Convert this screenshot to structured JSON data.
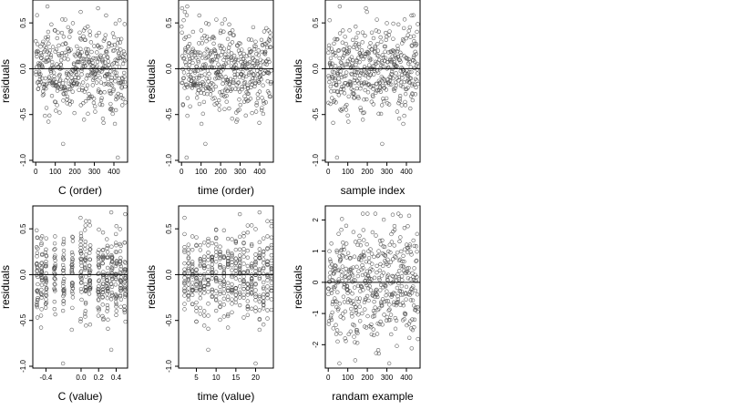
{
  "figure": {
    "panel_count": 6
  },
  "chart_data": [
    {
      "type": "scatter",
      "xlabel": "C (order)",
      "ylabel": "residuals",
      "xlim": [
        -15,
        470
      ],
      "ylim": [
        -1.02,
        0.75
      ],
      "xticks": [
        0,
        100,
        200,
        300,
        400
      ],
      "xtick_labels": [
        "0",
        "100",
        "200",
        "300",
        "400"
      ],
      "yticks": [
        -1.0,
        -0.5,
        0.0,
        0.5
      ],
      "ytick_labels": [
        "-1.0",
        "-0.5",
        "0.0",
        "0.5"
      ],
      "hline": 0,
      "grid": false,
      "n_points": 460,
      "x_range": [
        0,
        460
      ],
      "residual_sd": 0.24,
      "residual_extremes": [
        -0.97,
        0.68
      ]
    },
    {
      "type": "scatter",
      "xlabel": "time (order)",
      "ylabel": "residuals",
      "xlim": [
        -15,
        470
      ],
      "ylim": [
        -1.02,
        0.75
      ],
      "xticks": [
        0,
        100,
        200,
        300,
        400
      ],
      "xtick_labels": [
        "0",
        "100",
        "200",
        "300",
        "400"
      ],
      "yticks": [
        -1.0,
        -0.5,
        0.0,
        0.5
      ],
      "ytick_labels": [
        "-1.0",
        "-0.5",
        "0.0",
        "0.5"
      ],
      "hline": 0,
      "grid": false,
      "n_points": 460,
      "x_range": [
        0,
        460
      ],
      "residual_sd": 0.24,
      "residual_extremes": [
        -0.97,
        0.68
      ]
    },
    {
      "type": "scatter",
      "xlabel": "sample index",
      "ylabel": "residuals",
      "xlim": [
        -15,
        470
      ],
      "ylim": [
        -1.02,
        0.75
      ],
      "xticks": [
        0,
        100,
        200,
        300,
        400
      ],
      "xtick_labels": [
        "0",
        "100",
        "200",
        "300",
        "400"
      ],
      "yticks": [
        -1.0,
        -0.5,
        0.0,
        0.5
      ],
      "ytick_labels": [
        "-1.0",
        "-0.5",
        "0.0",
        "0.5"
      ],
      "hline": 0,
      "grid": false,
      "n_points": 460,
      "x_range": [
        0,
        460
      ],
      "residual_sd": 0.24,
      "residual_extremes": [
        -0.97,
        0.68
      ]
    },
    {
      "type": "scatter",
      "xlabel": "C (value)",
      "ylabel": "residuals",
      "xlim": [
        -0.55,
        0.53
      ],
      "ylim": [
        -1.02,
        0.75
      ],
      "xticks": [
        -0.4,
        0.0,
        0.2,
        0.4
      ],
      "xtick_labels": [
        "-0.4",
        "0.0",
        "0.2",
        "0.4"
      ],
      "yticks": [
        -1.0,
        -0.5,
        0.0,
        0.5
      ],
      "ytick_labels": [
        "-1.0",
        "-0.5",
        "0.0",
        "0.5"
      ],
      "hline": 0,
      "grid": false,
      "n_points": 460,
      "x_levels": [
        -0.5,
        -0.45,
        -0.4,
        -0.3,
        -0.2,
        -0.1,
        0.0,
        0.05,
        0.1,
        0.2,
        0.25,
        0.3,
        0.35,
        0.4,
        0.45,
        0.5
      ],
      "residual_sd": 0.24,
      "residual_extremes": [
        -0.97,
        0.68
      ]
    },
    {
      "type": "scatter",
      "xlabel": "time (value)",
      "ylabel": "residuals",
      "xlim": [
        0.5,
        24.5
      ],
      "ylim": [
        -1.02,
        0.75
      ],
      "xticks": [
        5,
        10,
        15,
        20
      ],
      "xtick_labels": [
        "5",
        "10",
        "15",
        "20"
      ],
      "yticks": [
        -1.0,
        -0.5,
        0.0,
        0.5
      ],
      "ytick_labels": [
        "-1.0",
        "-0.5",
        "0.0",
        "0.5"
      ],
      "hline": 0,
      "grid": false,
      "n_points": 460,
      "x_levels": [
        2,
        3,
        4,
        5,
        6,
        7,
        8,
        9,
        10,
        11,
        12,
        13,
        14,
        15,
        16,
        17,
        18,
        19,
        20,
        21,
        22,
        23,
        24
      ],
      "residual_sd": 0.24,
      "residual_extremes": [
        -0.97,
        0.68
      ]
    },
    {
      "type": "scatter",
      "xlabel": "randam example",
      "ylabel": "residuals",
      "xlim": [
        -15,
        470
      ],
      "ylim": [
        -2.75,
        2.45
      ],
      "xticks": [
        0,
        100,
        200,
        300,
        400
      ],
      "xtick_labels": [
        "0",
        "100",
        "200",
        "300",
        "400"
      ],
      "yticks": [
        -2,
        -1,
        0,
        1,
        2
      ],
      "ytick_labels": [
        "-2",
        "-1",
        "0",
        "1",
        "2"
      ],
      "hline": 0,
      "grid": false,
      "n_points": 460,
      "x_range": [
        0,
        460
      ],
      "residual_sd": 1.0,
      "residual_extremes": [
        -2.6,
        2.2
      ]
    }
  ]
}
